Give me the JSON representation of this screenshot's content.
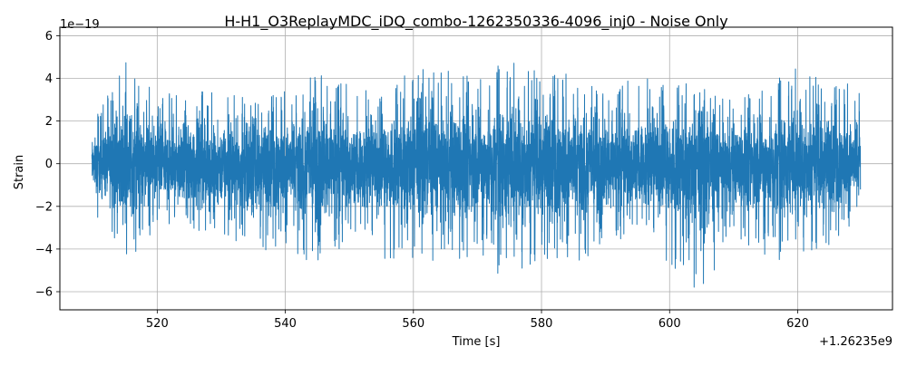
{
  "chart_data": {
    "type": "line",
    "title": "H-H1_O3ReplayMDC_iDQ_combo-1262350336-4096_inj0 - Noise Only",
    "xlabel": "Time [s]",
    "ylabel": "Strain",
    "x_offset_label": "+1.26235e9",
    "y_scale_label": "1e−19",
    "xlim": [
      504.8,
      634.8
    ],
    "ylim": [
      -6.85,
      6.4
    ],
    "x_ticks": [
      520,
      540,
      560,
      580,
      600,
      620
    ],
    "x_tick_labels": [
      "520",
      "540",
      "560",
      "580",
      "600",
      "620"
    ],
    "y_ticks": [
      -6,
      -4,
      -2,
      0,
      2,
      4,
      6
    ],
    "y_tick_labels": [
      "−6",
      "−4",
      "−2",
      "0",
      "2",
      "4",
      "6"
    ],
    "grid": true,
    "series": [
      {
        "color": "#1f77b4",
        "x_range": [
          509.8,
          629.8
        ],
        "envelope_points": [
          [
            510,
            2.0,
            -2.2
          ],
          [
            515,
            4.9,
            -4.6
          ],
          [
            520,
            3.2,
            -3.3
          ],
          [
            525,
            3.5,
            -3.5
          ],
          [
            530,
            3.3,
            -3.6
          ],
          [
            535,
            3.1,
            -4.1
          ],
          [
            540,
            3.4,
            -4.0
          ],
          [
            545,
            4.2,
            -4.8
          ],
          [
            550,
            3.7,
            -3.9
          ],
          [
            555,
            3.5,
            -4.5
          ],
          [
            560,
            4.5,
            -4.5
          ],
          [
            565,
            4.5,
            -4.8
          ],
          [
            570,
            4.0,
            -4.4
          ],
          [
            575,
            5.0,
            -5.6
          ],
          [
            580,
            4.3,
            -4.4
          ],
          [
            585,
            4.2,
            -4.8
          ],
          [
            590,
            3.2,
            -3.8
          ],
          [
            595,
            4.2,
            -3.6
          ],
          [
            600,
            4.1,
            -4.7
          ],
          [
            605,
            3.6,
            -6.3
          ],
          [
            610,
            3.0,
            -3.4
          ],
          [
            615,
            3.6,
            -4.6
          ],
          [
            620,
            4.7,
            -4.4
          ],
          [
            625,
            3.7,
            -3.8
          ],
          [
            629.8,
            3.8,
            -2.8
          ]
        ]
      }
    ]
  }
}
